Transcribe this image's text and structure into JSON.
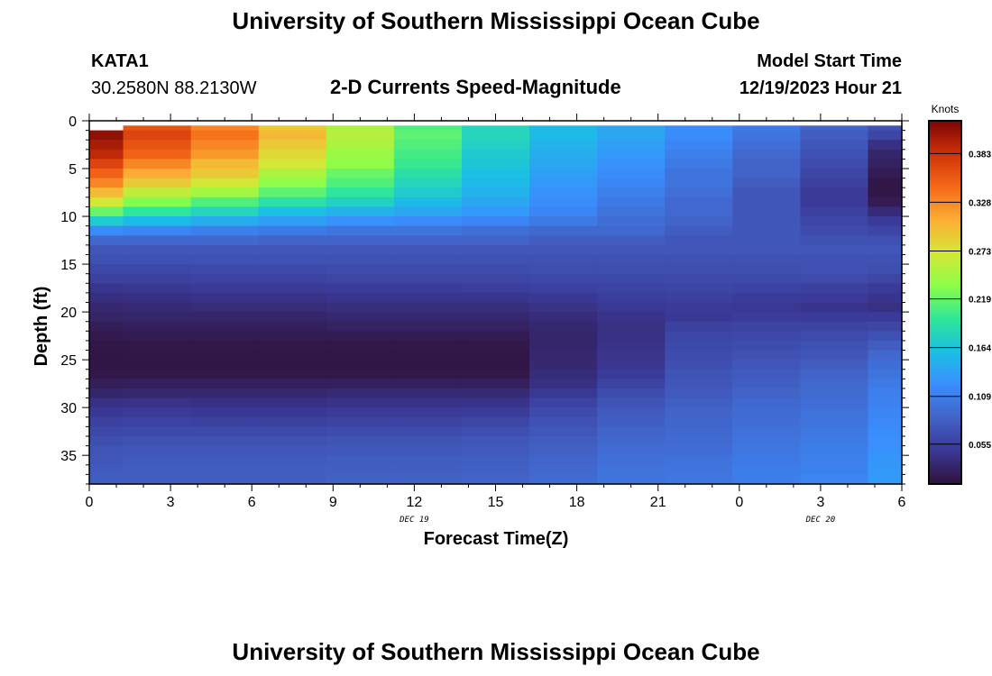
{
  "header": {
    "title": "University of Southern Mississippi Ocean Cube",
    "station": "KATA1",
    "coords": "30.2580N  88.2130W",
    "subtitle": "2-D Currents Speed-Magnitude",
    "model_start_label": "Model Start Time",
    "model_start_value": "12/19/2023 Hour 21"
  },
  "footer": {
    "title": "University of Southern Mississippi Ocean Cube"
  },
  "chart_data": {
    "type": "heatmap",
    "xlabel": "Forecast Time(Z)",
    "ylabel": "Depth (ft)",
    "x_tick_labels": [
      "0",
      "3",
      "6",
      "9",
      "12",
      "15",
      "18",
      "21",
      "0",
      "3",
      "6"
    ],
    "date_labels": [
      {
        "text": "DEC 19",
        "at_tick": 4
      },
      {
        "text": "DEC 20",
        "at_tick": 9
      }
    ],
    "y_ticks": [
      0,
      5,
      10,
      15,
      20,
      25,
      30,
      35
    ],
    "ylim": [
      0,
      38
    ],
    "y_reversed": true,
    "colorbar": {
      "title": "Knots",
      "ticks": [
        "0.383",
        "0.328",
        "0.273",
        "0.219",
        "0.164",
        "0.109",
        "0.055"
      ],
      "tick_values": [
        0.383,
        0.328,
        0.273,
        0.219,
        0.164,
        0.109,
        0.055
      ],
      "range": [
        0.01,
        0.42
      ],
      "colors": [
        "#30123b",
        "#3a3794",
        "#4262c6",
        "#3a8efe",
        "#1bbfe4",
        "#2ee699",
        "#8cfe48",
        "#d5e636",
        "#fdae35",
        "#f56918",
        "#cf3208",
        "#7a0403"
      ]
    },
    "columns": [
      {
        "x_start": 0,
        "x_end": 1.25
      },
      {
        "x_start": 1.25,
        "x_end": 3.75
      },
      {
        "x_start": 3.75,
        "x_end": 6.25
      },
      {
        "x_start": 6.25,
        "x_end": 8.75
      },
      {
        "x_start": 8.75,
        "x_end": 11.25
      },
      {
        "x_start": 11.25,
        "x_end": 13.75
      },
      {
        "x_start": 13.75,
        "x_end": 16.25
      },
      {
        "x_start": 16.25,
        "x_end": 18.75
      },
      {
        "x_start": 18.75,
        "x_end": 21.25
      },
      {
        "x_start": 21.25,
        "x_end": 23.75
      },
      {
        "x_start": 23.75,
        "x_end": 26.25
      },
      {
        "x_start": 26.25,
        "x_end": 28.75
      },
      {
        "x_start": 28.75,
        "x_end": 30
      }
    ],
    "depth_rows": [
      [
        0.5,
        1
      ],
      [
        1,
        2
      ],
      [
        2,
        3
      ],
      [
        3,
        4
      ],
      [
        4,
        5
      ],
      [
        5,
        6
      ],
      [
        6,
        7
      ],
      [
        7,
        8
      ],
      [
        8,
        9
      ],
      [
        9,
        10
      ],
      [
        10,
        11
      ],
      [
        11,
        12
      ],
      [
        12,
        13
      ],
      [
        13,
        14
      ],
      [
        14,
        15
      ],
      [
        15,
        16
      ],
      [
        16,
        17
      ],
      [
        17,
        18
      ],
      [
        18,
        19
      ],
      [
        19,
        20
      ],
      [
        20,
        21
      ],
      [
        21,
        22
      ],
      [
        22,
        23
      ],
      [
        23,
        24
      ],
      [
        24,
        25
      ],
      [
        25,
        26
      ],
      [
        26,
        27
      ],
      [
        27,
        28
      ],
      [
        28,
        29
      ],
      [
        29,
        30
      ],
      [
        30,
        31
      ],
      [
        31,
        32
      ],
      [
        32,
        33
      ],
      [
        33,
        34
      ],
      [
        34,
        35
      ],
      [
        35,
        36
      ],
      [
        36,
        37
      ],
      [
        37,
        38
      ]
    ],
    "values": [
      [
        null,
        0.36,
        0.33,
        0.29,
        0.25,
        0.21,
        0.18,
        0.155,
        0.14,
        0.12,
        0.105,
        0.085,
        0.07
      ],
      [
        0.41,
        0.37,
        0.34,
        0.3,
        0.255,
        0.215,
        0.18,
        0.155,
        0.14,
        0.12,
        0.1,
        0.08,
        0.06
      ],
      [
        0.4,
        0.36,
        0.33,
        0.29,
        0.25,
        0.21,
        0.175,
        0.15,
        0.135,
        0.115,
        0.095,
        0.075,
        0.04
      ],
      [
        0.39,
        0.35,
        0.32,
        0.28,
        0.24,
        0.205,
        0.17,
        0.145,
        0.13,
        0.11,
        0.09,
        0.07,
        0.03
      ],
      [
        0.37,
        0.33,
        0.3,
        0.27,
        0.235,
        0.2,
        0.165,
        0.14,
        0.125,
        0.105,
        0.085,
        0.065,
        0.025
      ],
      [
        0.35,
        0.31,
        0.29,
        0.25,
        0.22,
        0.19,
        0.16,
        0.135,
        0.12,
        0.1,
        0.085,
        0.06,
        0.02
      ],
      [
        0.33,
        0.29,
        0.27,
        0.235,
        0.21,
        0.18,
        0.155,
        0.13,
        0.115,
        0.1,
        0.08,
        0.055,
        0.015
      ],
      [
        0.3,
        0.26,
        0.245,
        0.215,
        0.195,
        0.17,
        0.15,
        0.125,
        0.11,
        0.095,
        0.075,
        0.05,
        0.015
      ],
      [
        0.27,
        0.23,
        0.21,
        0.19,
        0.175,
        0.155,
        0.14,
        0.12,
        0.105,
        0.09,
        0.075,
        0.05,
        0.02
      ],
      [
        0.22,
        0.195,
        0.18,
        0.16,
        0.15,
        0.14,
        0.13,
        0.115,
        0.1,
        0.09,
        0.075,
        0.055,
        0.035
      ],
      [
        0.17,
        0.155,
        0.145,
        0.135,
        0.125,
        0.12,
        0.115,
        0.105,
        0.095,
        0.085,
        0.075,
        0.06,
        0.05
      ],
      [
        0.12,
        0.115,
        0.11,
        0.105,
        0.1,
        0.1,
        0.095,
        0.09,
        0.09,
        0.08,
        0.075,
        0.065,
        0.06
      ],
      [
        0.09,
        0.09,
        0.09,
        0.085,
        0.085,
        0.085,
        0.085,
        0.08,
        0.08,
        0.075,
        0.075,
        0.07,
        0.07
      ],
      [
        0.075,
        0.075,
        0.075,
        0.075,
        0.075,
        0.075,
        0.075,
        0.075,
        0.075,
        0.075,
        0.075,
        0.075,
        0.075
      ],
      [
        0.07,
        0.07,
        0.07,
        0.07,
        0.07,
        0.07,
        0.07,
        0.07,
        0.07,
        0.07,
        0.07,
        0.07,
        0.07
      ],
      [
        0.062,
        0.062,
        0.064,
        0.064,
        0.066,
        0.066,
        0.066,
        0.068,
        0.068,
        0.068,
        0.068,
        0.07,
        0.068
      ],
      [
        0.055,
        0.055,
        0.058,
        0.058,
        0.06,
        0.06,
        0.06,
        0.062,
        0.063,
        0.064,
        0.064,
        0.065,
        0.06
      ],
      [
        0.045,
        0.047,
        0.05,
        0.05,
        0.052,
        0.052,
        0.053,
        0.055,
        0.058,
        0.06,
        0.058,
        0.055,
        0.05
      ],
      [
        0.038,
        0.04,
        0.042,
        0.042,
        0.045,
        0.045,
        0.045,
        0.048,
        0.053,
        0.055,
        0.052,
        0.05,
        0.045
      ],
      [
        0.032,
        0.034,
        0.036,
        0.036,
        0.038,
        0.038,
        0.038,
        0.042,
        0.048,
        0.05,
        0.048,
        0.045,
        0.04
      ],
      [
        0.028,
        0.03,
        0.03,
        0.03,
        0.032,
        0.032,
        0.032,
        0.036,
        0.043,
        0.048,
        0.052,
        0.05,
        0.05
      ],
      [
        0.022,
        0.024,
        0.024,
        0.024,
        0.026,
        0.026,
        0.026,
        0.032,
        0.04,
        0.055,
        0.058,
        0.058,
        0.06
      ],
      [
        0.018,
        0.02,
        0.02,
        0.02,
        0.02,
        0.02,
        0.02,
        0.03,
        0.04,
        0.06,
        0.062,
        0.065,
        0.07
      ],
      [
        0.015,
        0.016,
        0.016,
        0.016,
        0.016,
        0.016,
        0.016,
        0.03,
        0.042,
        0.063,
        0.066,
        0.07,
        0.08
      ],
      [
        0.014,
        0.015,
        0.015,
        0.015,
        0.015,
        0.015,
        0.015,
        0.032,
        0.044,
        0.066,
        0.07,
        0.075,
        0.09
      ],
      [
        0.014,
        0.014,
        0.014,
        0.014,
        0.014,
        0.014,
        0.014,
        0.033,
        0.046,
        0.068,
        0.075,
        0.08,
        0.095
      ],
      [
        0.016,
        0.016,
        0.016,
        0.016,
        0.016,
        0.016,
        0.016,
        0.036,
        0.05,
        0.072,
        0.078,
        0.085,
        0.1
      ],
      [
        0.022,
        0.024,
        0.024,
        0.024,
        0.024,
        0.024,
        0.024,
        0.04,
        0.058,
        0.075,
        0.082,
        0.09,
        0.105
      ],
      [
        0.03,
        0.032,
        0.032,
        0.032,
        0.034,
        0.034,
        0.034,
        0.048,
        0.066,
        0.078,
        0.086,
        0.092,
        0.11
      ],
      [
        0.04,
        0.042,
        0.04,
        0.04,
        0.042,
        0.042,
        0.043,
        0.058,
        0.072,
        0.082,
        0.09,
        0.095,
        0.112
      ],
      [
        0.048,
        0.05,
        0.048,
        0.048,
        0.05,
        0.05,
        0.052,
        0.065,
        0.078,
        0.085,
        0.092,
        0.098,
        0.115
      ],
      [
        0.055,
        0.058,
        0.056,
        0.056,
        0.058,
        0.058,
        0.06,
        0.07,
        0.082,
        0.088,
        0.095,
        0.1,
        0.118
      ],
      [
        0.062,
        0.064,
        0.064,
        0.064,
        0.066,
        0.066,
        0.068,
        0.075,
        0.086,
        0.09,
        0.097,
        0.102,
        0.12
      ],
      [
        0.068,
        0.07,
        0.07,
        0.07,
        0.072,
        0.072,
        0.074,
        0.08,
        0.09,
        0.092,
        0.1,
        0.105,
        0.122
      ],
      [
        0.072,
        0.075,
        0.075,
        0.075,
        0.076,
        0.076,
        0.078,
        0.084,
        0.093,
        0.095,
        0.102,
        0.108,
        0.125
      ],
      [
        0.075,
        0.078,
        0.078,
        0.078,
        0.08,
        0.08,
        0.082,
        0.087,
        0.096,
        0.098,
        0.105,
        0.11,
        0.128
      ],
      [
        0.078,
        0.08,
        0.08,
        0.08,
        0.082,
        0.082,
        0.084,
        0.09,
        0.098,
        0.1,
        0.107,
        0.112,
        0.13
      ],
      [
        0.08,
        0.082,
        0.082,
        0.082,
        0.084,
        0.084,
        0.086,
        0.092,
        0.1,
        0.102,
        0.108,
        0.114,
        0.132
      ]
    ]
  }
}
